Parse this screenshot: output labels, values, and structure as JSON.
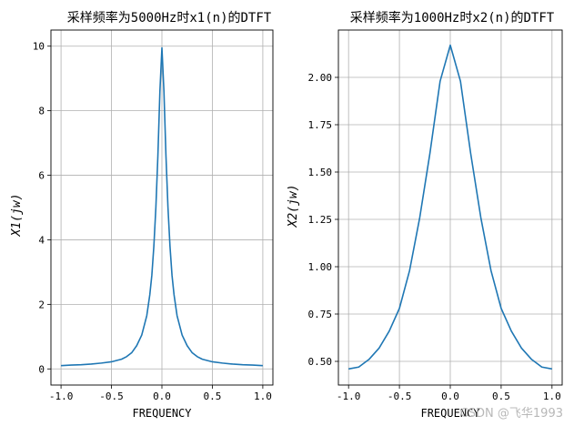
{
  "chart_data": [
    {
      "type": "line",
      "title": "采样频率为5000Hz时x1(n)的DTFT",
      "xlabel": "FREQUENCY",
      "ylabel": "X1(jw)",
      "xlim": [
        -1.1,
        1.1
      ],
      "ylim": [
        -0.5,
        10.5
      ],
      "xticks": [
        -1.0,
        -0.5,
        0.0,
        0.5,
        1.0
      ],
      "xtick_labels": [
        "-1.0",
        "-0.5",
        "0.0",
        "0.5",
        "1.0"
      ],
      "yticks": [
        0,
        2,
        4,
        6,
        8,
        10
      ],
      "ytick_labels": [
        "0",
        "2",
        "4",
        "6",
        "8",
        "10"
      ],
      "grid": true,
      "color": "#1f77b4",
      "series": [
        {
          "x": [
            -1.0,
            -0.9,
            -0.8,
            -0.7,
            -0.6,
            -0.5,
            -0.4,
            -0.35,
            -0.3,
            -0.25,
            -0.2,
            -0.15,
            -0.12,
            -0.1,
            -0.08,
            -0.06,
            -0.04,
            -0.02,
            0.0,
            0.02,
            0.04,
            0.06,
            0.08,
            0.1,
            0.12,
            0.15,
            0.2,
            0.25,
            0.3,
            0.35,
            0.4,
            0.5,
            0.6,
            0.7,
            0.8,
            0.9,
            1.0
          ],
          "y": [
            0.1,
            0.12,
            0.13,
            0.15,
            0.18,
            0.22,
            0.3,
            0.38,
            0.5,
            0.72,
            1.05,
            1.65,
            2.3,
            2.9,
            3.8,
            5.0,
            6.6,
            8.6,
            9.95,
            8.6,
            6.6,
            5.0,
            3.8,
            2.9,
            2.3,
            1.65,
            1.05,
            0.72,
            0.5,
            0.38,
            0.3,
            0.22,
            0.18,
            0.15,
            0.13,
            0.12,
            0.1
          ]
        }
      ]
    },
    {
      "type": "line",
      "title": "采样频率为1000Hz时x2(n)的DTFT",
      "xlabel": "FREQUENCY",
      "ylabel": "X2(jw)",
      "xlim": [
        -1.1,
        1.1
      ],
      "ylim": [
        0.375,
        2.25
      ],
      "xticks": [
        -1.0,
        -0.5,
        0.0,
        0.5,
        1.0
      ],
      "xtick_labels": [
        "-1.0",
        "-0.5",
        "0.0",
        "0.5",
        "1.0"
      ],
      "yticks": [
        0.5,
        0.75,
        1.0,
        1.25,
        1.5,
        1.75,
        2.0
      ],
      "ytick_labels": [
        "0.50",
        "0.75",
        "1.00",
        "1.25",
        "1.50",
        "1.75",
        "2.00"
      ],
      "grid": true,
      "color": "#1f77b4",
      "series": [
        {
          "x": [
            -1.0,
            -0.9,
            -0.8,
            -0.7,
            -0.6,
            -0.5,
            -0.4,
            -0.3,
            -0.2,
            -0.1,
            0.0,
            0.1,
            0.2,
            0.3,
            0.4,
            0.5,
            0.6,
            0.7,
            0.8,
            0.9,
            1.0
          ],
          "y": [
            0.46,
            0.47,
            0.51,
            0.57,
            0.66,
            0.78,
            0.98,
            1.26,
            1.6,
            1.98,
            2.17,
            1.98,
            1.6,
            1.26,
            0.98,
            0.78,
            0.66,
            0.57,
            0.51,
            0.47,
            0.46
          ]
        }
      ]
    }
  ],
  "watermark": "CSDN @飞华1993"
}
